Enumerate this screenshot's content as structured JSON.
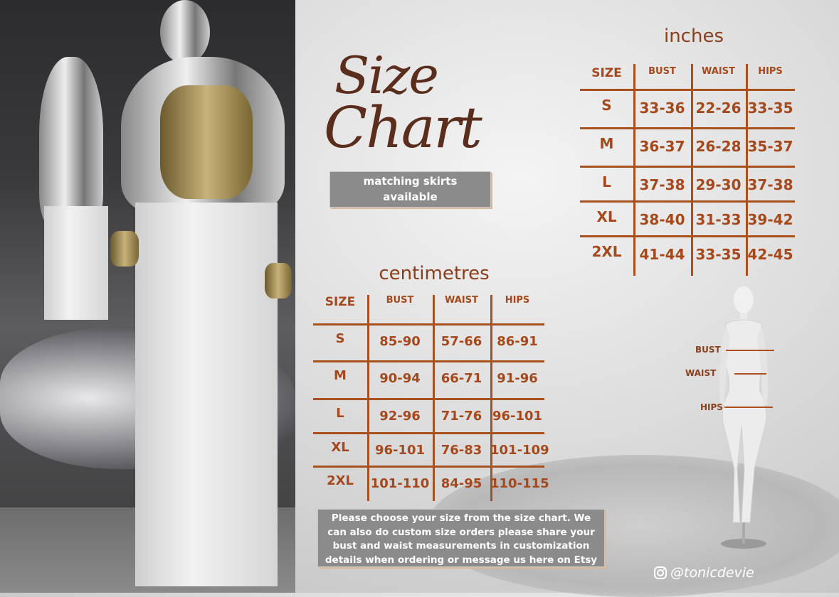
{
  "heading": {
    "line1": "Size",
    "line2": "Chart"
  },
  "badge": "matching skirts available",
  "inches": {
    "title": "inches",
    "headers": [
      "SIZE",
      "BUST",
      "WAIST",
      "HIPS"
    ],
    "rows": [
      [
        "S",
        "33-36",
        "22-26",
        "33-35"
      ],
      [
        "M",
        "36-37",
        "26-28",
        "35-37"
      ],
      [
        "L",
        "37-38",
        "29-30",
        "37-38"
      ],
      [
        "XL",
        "38-40",
        "31-33",
        "39-42"
      ],
      [
        "2XL",
        "41-44",
        "33-35",
        "42-45"
      ]
    ]
  },
  "centimetres": {
    "title": "centimetres",
    "headers": [
      "SIZE",
      "BUST",
      "WAIST",
      "HIPS"
    ],
    "rows": [
      [
        "S",
        "85-90",
        "57-66",
        "86-91"
      ],
      [
        "M",
        "90-94",
        "66-71",
        "91-96"
      ],
      [
        "L",
        "92-96",
        "71-76",
        "96-101"
      ],
      [
        "XL",
        "96-101",
        "76-83",
        "101-109"
      ],
      [
        "2XL",
        "101-110",
        "84-95",
        "110-115"
      ]
    ]
  },
  "note": "Please choose your size from the size chart. We can also do custom size orders please share your bust and waist measurements in customization details when ordering or message us here on Etsy",
  "figure_labels": {
    "bust": "BUST",
    "waist": "WAIST",
    "hips": "HIPS"
  },
  "social": {
    "icon": "instagram-icon",
    "handle": "@tonicdevie"
  },
  "colors": {
    "accent": "#a5491d",
    "box": "#8b8b8b"
  }
}
